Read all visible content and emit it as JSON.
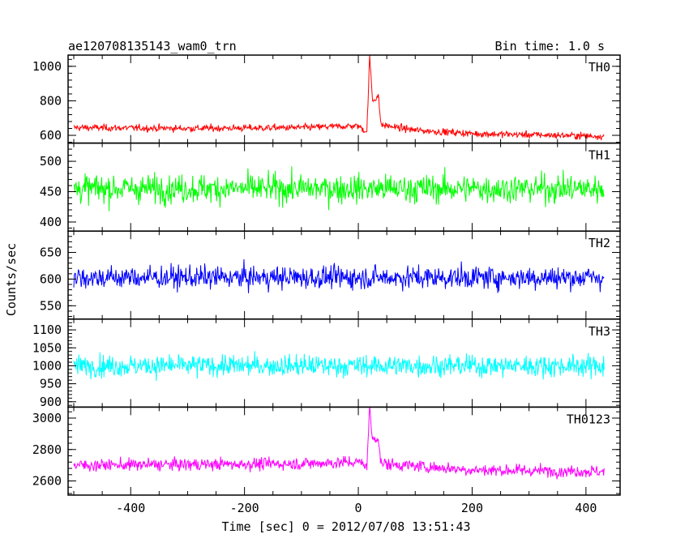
{
  "header": {
    "object_name": "ae120708135143_wam0_trn",
    "bin_time": "Bin time: 1.0 s"
  },
  "chart_data": {
    "type": "line",
    "title": "ae120708135143_wam0_trn",
    "subtitle": "Bin time: 1.0 s",
    "xlabel": "Time [sec] 0 = 2012/07/08 13:51:43",
    "ylabel": "Counts/sec",
    "xlim": [
      -510,
      460
    ],
    "x_ticks": [
      -400,
      -200,
      0,
      200,
      400
    ],
    "x_range_data": [
      -500,
      432
    ],
    "grid": false,
    "panels": [
      {
        "name": "TH0",
        "color": "#ff0000",
        "ylim": [
          555,
          1065
        ],
        "y_ticks": [
          600,
          800,
          1000
        ],
        "segments": [
          {
            "x": -500,
            "y": 645
          },
          {
            "x": -300,
            "y": 640
          },
          {
            "x": -100,
            "y": 645
          },
          {
            "x": 0,
            "y": 655
          },
          {
            "x": 15,
            "y": 620
          },
          {
            "x": 20,
            "y": 1060
          },
          {
            "x": 25,
            "y": 800
          },
          {
            "x": 35,
            "y": 830
          },
          {
            "x": 40,
            "y": 660
          },
          {
            "x": 100,
            "y": 630
          },
          {
            "x": 200,
            "y": 610
          },
          {
            "x": 432,
            "y": 595
          }
        ],
        "noise_amplitude": 28
      },
      {
        "name": "TH1",
        "color": "#00ff00",
        "ylim": [
          385,
          530
        ],
        "y_ticks": [
          400,
          450,
          500
        ],
        "segments": [
          {
            "x": -500,
            "y": 455
          },
          {
            "x": 432,
            "y": 455
          }
        ],
        "noise_amplitude": 33
      },
      {
        "name": "TH2",
        "color": "#0000ff",
        "ylim": [
          525,
          690
        ],
        "y_ticks": [
          550,
          600,
          650
        ],
        "segments": [
          {
            "x": -500,
            "y": 603
          },
          {
            "x": 432,
            "y": 603
          }
        ],
        "noise_amplitude": 30
      },
      {
        "name": "TH3",
        "color": "#00ffff",
        "ylim": [
          885,
          1130
        ],
        "y_ticks": [
          900,
          950,
          1000,
          1050,
          1100
        ],
        "segments": [
          {
            "x": -500,
            "y": 1000
          },
          {
            "x": 432,
            "y": 1000
          }
        ],
        "noise_amplitude": 42
      },
      {
        "name": "TH0123",
        "color": "#ff00ff",
        "ylim": [
          2510,
          3070
        ],
        "y_ticks": [
          2600,
          2800,
          3000
        ],
        "segments": [
          {
            "x": -500,
            "y": 2700
          },
          {
            "x": -100,
            "y": 2710
          },
          {
            "x": 0,
            "y": 2720
          },
          {
            "x": 15,
            "y": 2700
          },
          {
            "x": 20,
            "y": 3060
          },
          {
            "x": 25,
            "y": 2860
          },
          {
            "x": 35,
            "y": 2880
          },
          {
            "x": 40,
            "y": 2710
          },
          {
            "x": 200,
            "y": 2670
          },
          {
            "x": 432,
            "y": 2660
          }
        ],
        "noise_amplitude": 55
      }
    ]
  }
}
